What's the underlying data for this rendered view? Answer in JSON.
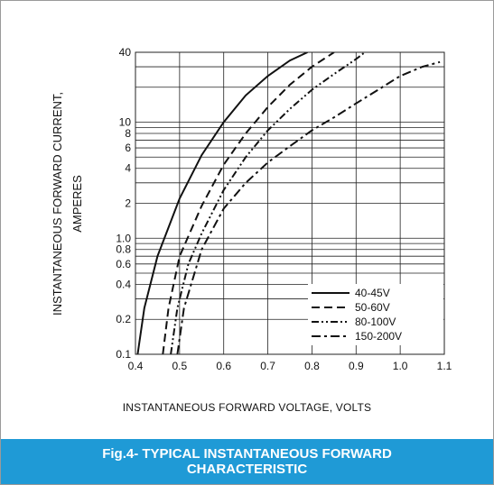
{
  "caption": "Fig.4- TYPICAL INSTANTANEOUS FORWARD CHARACTERISTIC",
  "chart_data": {
    "type": "line",
    "title": "",
    "xlabel": "INSTANTANEOUS FORWARD VOLTAGE, VOLTS",
    "ylabel": [
      "INSTANTANEOUS FORWARD CURRENT,",
      "AMPERES"
    ],
    "xlim": [
      0.4,
      1.1
    ],
    "ylim": [
      0.1,
      40
    ],
    "yscale": "log",
    "grid": true,
    "legend_position": "bottom-right",
    "x_ticks": [
      "0.4",
      "0.5",
      "0.6",
      "0.7",
      "0.8",
      "0.9",
      "1.0",
      "1.1"
    ],
    "y_ticks": [
      {
        "v": 0.1,
        "label": "0.1"
      },
      {
        "v": 0.2,
        "label": "0.2"
      },
      {
        "v": 0.4,
        "label": "0.4"
      },
      {
        "v": 0.6,
        "label": "0.6"
      },
      {
        "v": 0.8,
        "label": "0.8"
      },
      {
        "v": 1,
        "label": "1.0"
      },
      {
        "v": 2,
        "label": "2"
      },
      {
        "v": 4,
        "label": "4"
      },
      {
        "v": 6,
        "label": "6"
      },
      {
        "v": 8,
        "label": "8"
      },
      {
        "v": 10,
        "label": "10"
      },
      {
        "v": 40,
        "label": "40"
      }
    ],
    "y_gridlines": [
      0.1,
      0.2,
      0.3,
      0.4,
      0.5,
      0.6,
      0.7,
      0.8,
      0.9,
      1,
      2,
      3,
      4,
      5,
      6,
      7,
      8,
      9,
      10,
      20,
      30,
      40
    ],
    "series": [
      {
        "name": "40-45V",
        "dash": "solid",
        "points": [
          [
            0.405,
            0.1
          ],
          [
            0.42,
            0.25
          ],
          [
            0.45,
            0.7
          ],
          [
            0.5,
            2.2
          ],
          [
            0.55,
            5.2
          ],
          [
            0.6,
            10
          ],
          [
            0.65,
            17
          ],
          [
            0.7,
            25
          ],
          [
            0.75,
            34
          ],
          [
            0.79,
            40
          ]
        ]
      },
      {
        "name": "50-60V",
        "dash": "dashed",
        "points": [
          [
            0.462,
            0.1
          ],
          [
            0.475,
            0.25
          ],
          [
            0.5,
            0.7
          ],
          [
            0.55,
            1.9
          ],
          [
            0.6,
            4.3
          ],
          [
            0.65,
            8
          ],
          [
            0.7,
            13.5
          ],
          [
            0.75,
            21
          ],
          [
            0.8,
            30
          ],
          [
            0.85,
            40
          ]
        ]
      },
      {
        "name": "80-100V",
        "dash": "dash-dot-dot",
        "points": [
          [
            0.48,
            0.1
          ],
          [
            0.495,
            0.25
          ],
          [
            0.52,
            0.6
          ],
          [
            0.55,
            1.1
          ],
          [
            0.6,
            2.6
          ],
          [
            0.65,
            5
          ],
          [
            0.7,
            8.5
          ],
          [
            0.75,
            13
          ],
          [
            0.8,
            19
          ],
          [
            0.85,
            26
          ],
          [
            0.9,
            35
          ],
          [
            0.92,
            40
          ]
        ]
      },
      {
        "name": "150-200V",
        "dash": "dash-dot",
        "points": [
          [
            0.495,
            0.1
          ],
          [
            0.51,
            0.25
          ],
          [
            0.55,
            0.8
          ],
          [
            0.6,
            1.8
          ],
          [
            0.65,
            3
          ],
          [
            0.7,
            4.5
          ],
          [
            0.75,
            6.2
          ],
          [
            0.8,
            8.5
          ],
          [
            0.85,
            11
          ],
          [
            0.9,
            14.5
          ],
          [
            0.95,
            19
          ],
          [
            1.0,
            25
          ],
          [
            1.05,
            30
          ],
          [
            1.09,
            33
          ]
        ]
      }
    ]
  }
}
